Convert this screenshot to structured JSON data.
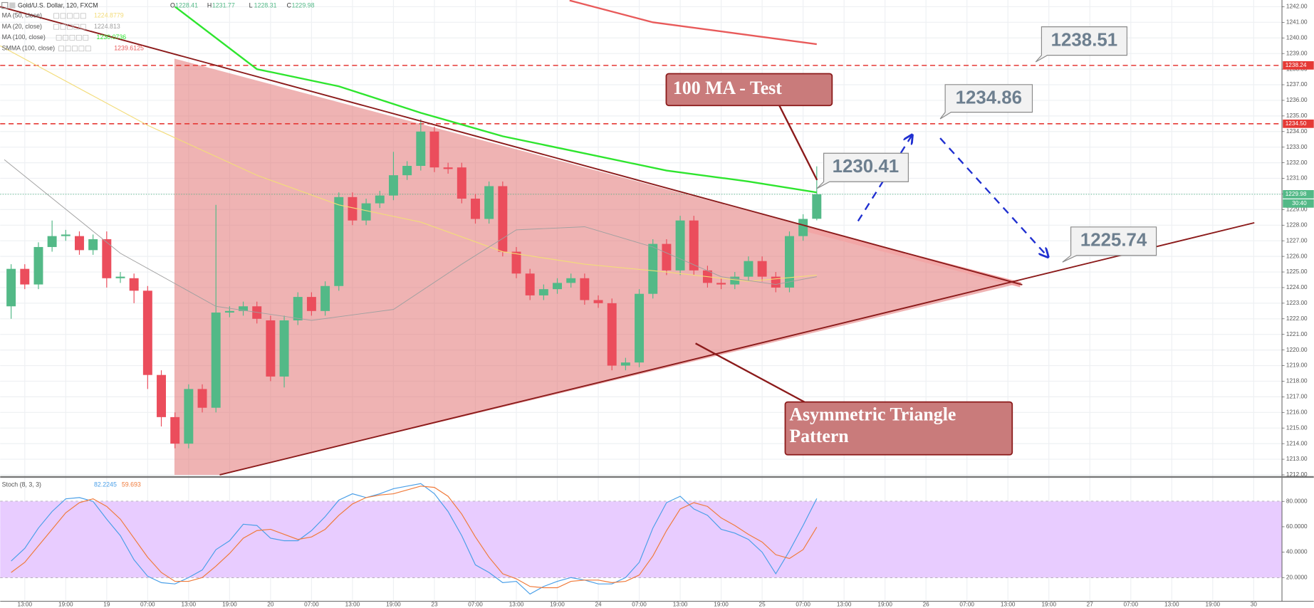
{
  "chart_data": [
    {
      "type": "candlestick",
      "title": "Gold/U.S. Dollar, 120, FXCM",
      "header": [
        {
          "label": "O",
          "value": 1228.41
        },
        {
          "label": "H",
          "value": 1231.77
        },
        {
          "label": "L",
          "value": 1228.31
        },
        {
          "label": "C",
          "value": 1229.98
        }
      ],
      "x": [
        0,
        1,
        2,
        3,
        4,
        5,
        6,
        7,
        8,
        9,
        10,
        11,
        12,
        13,
        14,
        15,
        16,
        17,
        18,
        19,
        20,
        21,
        22,
        23,
        24,
        25,
        26,
        27,
        28,
        29,
        30,
        31,
        32,
        33,
        34,
        35,
        36,
        37,
        38,
        39,
        40,
        41,
        42,
        43,
        44,
        45,
        46,
        47,
        48,
        49,
        50,
        51,
        52,
        53,
        54,
        55,
        56,
        57,
        58,
        59
      ],
      "open": [
        1222.8,
        1225.2,
        1224.2,
        1226.6,
        1227.3,
        1227.3,
        1226.4,
        1227.1,
        1224.6,
        1224.6,
        1223.8,
        1218.4,
        1215.7,
        1214.0,
        1217.5,
        1216.3,
        1222.4,
        1222.5,
        1222.8,
        1221.9,
        1218.3,
        1221.9,
        1223.4,
        1222.5,
        1224.1,
        1229.8,
        1228.3,
        1229.4,
        1229.9,
        1231.2,
        1231.8,
        1234.0,
        1231.7,
        1231.7,
        1229.7,
        1228.4,
        1230.5,
        1226.3,
        1224.9,
        1223.5,
        1223.9,
        1224.3,
        1224.6,
        1223.2,
        1223.0,
        1219.0,
        1219.2,
        1223.6,
        1226.8,
        1225.1,
        1228.3,
        1225.1,
        1224.3,
        1224.2,
        1224.7,
        1225.7,
        1224.7,
        1224.0,
        1227.3,
        1228.41
      ],
      "high": [
        1225.5,
        1225.5,
        1226.9,
        1228.3,
        1227.7,
        1227.6,
        1227.4,
        1227.6,
        1225.0,
        1224.9,
        1224.1,
        1218.7,
        1216.0,
        1217.8,
        1217.8,
        1229.3,
        1222.8,
        1223.1,
        1223.1,
        1222.2,
        1222.2,
        1223.7,
        1223.7,
        1224.4,
        1230.1,
        1230.1,
        1229.7,
        1230.2,
        1232.7,
        1232.1,
        1234.8,
        1234.3,
        1232.0,
        1232.0,
        1230.0,
        1230.8,
        1230.8,
        1226.6,
        1225.2,
        1224.2,
        1224.6,
        1224.9,
        1224.9,
        1223.5,
        1223.3,
        1219.5,
        1223.9,
        1227.1,
        1227.1,
        1228.6,
        1228.6,
        1225.4,
        1224.6,
        1225.0,
        1226.0,
        1226.0,
        1225.0,
        1227.6,
        1228.7,
        1231.77
      ],
      "low": [
        1222.0,
        1223.9,
        1223.9,
        1226.3,
        1227.0,
        1226.1,
        1226.1,
        1224.0,
        1224.3,
        1223.0,
        1217.5,
        1215.1,
        1213.7,
        1213.7,
        1216.0,
        1216.0,
        1222.1,
        1222.2,
        1221.7,
        1218.0,
        1217.6,
        1221.6,
        1222.2,
        1222.2,
        1223.8,
        1228.0,
        1228.0,
        1229.1,
        1229.6,
        1230.9,
        1231.5,
        1231.4,
        1231.3,
        1229.4,
        1228.1,
        1228.1,
        1226.0,
        1224.6,
        1223.2,
        1223.2,
        1223.6,
        1224.0,
        1222.9,
        1222.7,
        1218.7,
        1218.7,
        1218.9,
        1223.3,
        1224.8,
        1224.8,
        1224.8,
        1224.0,
        1223.9,
        1223.9,
        1224.4,
        1224.4,
        1223.7,
        1223.7,
        1227.0,
        1228.31
      ],
      "close": [
        1225.2,
        1224.2,
        1226.6,
        1227.3,
        1227.4,
        1226.4,
        1227.1,
        1224.6,
        1224.7,
        1223.8,
        1218.4,
        1215.7,
        1214.0,
        1217.5,
        1216.3,
        1222.4,
        1222.5,
        1222.8,
        1222.0,
        1218.3,
        1221.9,
        1223.4,
        1222.5,
        1224.1,
        1229.8,
        1228.3,
        1229.4,
        1229.9,
        1231.2,
        1231.8,
        1234.0,
        1231.7,
        1231.6,
        1229.7,
        1228.4,
        1230.5,
        1226.3,
        1224.9,
        1223.5,
        1223.9,
        1224.3,
        1224.6,
        1223.2,
        1223.0,
        1219.0,
        1219.2,
        1223.6,
        1226.8,
        1225.1,
        1228.3,
        1225.1,
        1224.3,
        1224.2,
        1224.7,
        1225.7,
        1224.7,
        1224.0,
        1227.3,
        1228.4,
        1229.98
      ],
      "up_color": "#53b987",
      "down_color": "#eb4d5c",
      "series": [
        {
          "name": "MA (50, close)",
          "last": 1224.8779,
          "color": "#f3dc7a",
          "x": [
            -0.8,
            10,
            18,
            24,
            30,
            36,
            42,
            48,
            54,
            59
          ],
          "values": [
            1239.5,
            1234.4,
            1231.2,
            1229.3,
            1228.2,
            1226.3,
            1225.5,
            1225.0,
            1224.4,
            1224.8
          ]
        },
        {
          "name": "MA (20, close)",
          "last": 1224.813,
          "color": "#a0a0a0",
          "x": [
            -0.5,
            8,
            15,
            22,
            28,
            33,
            37,
            42,
            47,
            52,
            56,
            59
          ],
          "values": [
            1232.2,
            1226.2,
            1222.8,
            1221.9,
            1222.6,
            1225.5,
            1227.7,
            1227.9,
            1226.6,
            1224.7,
            1224.2,
            1224.7
          ]
        },
        {
          "name": "MA (100, close)",
          "last": 1230.0736,
          "color": "#2ee52e",
          "x": [
            12,
            18,
            24,
            30,
            36,
            42,
            48,
            54,
            59
          ],
          "values": [
            1242.0,
            1238.0,
            1236.9,
            1235.2,
            1233.7,
            1232.6,
            1231.5,
            1230.8,
            1230.1
          ]
        },
        {
          "name": "SMMA (100, close)",
          "last": 1239.6125,
          "color": "#e85a5a",
          "x": [
            40.9,
            47,
            53,
            59
          ],
          "values": [
            1242.4,
            1241.0,
            1240.3,
            1239.6
          ]
        }
      ],
      "levels": [
        1238.24,
        {
          "value": 1234.5,
          "label": "1234.50"
        }
      ],
      "level_color": "#e53935",
      "last_price": 1229.98,
      "countdown": "30:40",
      "annotations": [
        "100 MA - Test",
        "Asymmetric Triangle Pattern",
        "1238.51",
        "1234.86",
        "1230.41",
        "1225.74"
      ],
      "xlim": [
        -0.8,
        93.07
      ],
      "ylim": [
        1212,
        1242.43
      ],
      "yticks": [
        {
          "value": 1212,
          "label": "1212.00"
        },
        {
          "value": 1213,
          "label": "1213.00"
        },
        {
          "value": 1214,
          "label": "1214.00"
        },
        {
          "value": 1215,
          "label": "1215.00"
        },
        {
          "value": 1216,
          "label": "1216.00"
        },
        {
          "value": 1217,
          "label": "1217.00"
        },
        {
          "value": 1218,
          "label": "1218.00"
        },
        {
          "value": 1219,
          "label": "1219.00"
        },
        {
          "value": 1220,
          "label": "1220.00"
        },
        {
          "value": 1221,
          "label": "1221.00"
        },
        {
          "value": 1222,
          "label": "1222.00"
        },
        {
          "value": 1223,
          "label": "1223.00"
        },
        {
          "value": 1224,
          "label": "1224.00"
        },
        {
          "value": 1225,
          "label": "1225.00"
        },
        {
          "value": 1226,
          "label": "1226.00"
        },
        {
          "value": 1227,
          "label": "1227.00"
        },
        {
          "value": 1228,
          "label": "1228.00"
        },
        {
          "value": 1229,
          "label": "1229.00"
        },
        {
          "value": 1230,
          "label": "1230.00"
        },
        {
          "value": 1231,
          "label": "1231.00"
        },
        {
          "value": 1232,
          "label": "1232.00"
        },
        {
          "value": 1233,
          "label": "1233.00"
        },
        {
          "value": 1234,
          "label": "1234.00"
        },
        {
          "value": 1235,
          "label": "1235.00"
        },
        {
          "value": 1236,
          "label": "1236.00"
        },
        {
          "value": 1237,
          "label": "1237.00"
        },
        {
          "value": 1238,
          "label": "1238.00"
        },
        {
          "value": 1239,
          "label": "1239.00"
        },
        {
          "value": 1240,
          "label": "1240.00"
        },
        {
          "value": 1241,
          "label": "1241.00"
        },
        {
          "value": 1242,
          "label": "1242.00"
        }
      ],
      "grid": true
    },
    {
      "type": "line",
      "title": "Stoch (8, 3, 3)",
      "series": [
        {
          "last": 82.2245,
          "color": "#4a9fe8",
          "values": [
            33,
            43,
            59,
            72,
            82,
            83,
            80,
            66,
            53,
            34,
            21,
            16,
            15,
            20,
            26,
            42,
            49,
            62,
            61,
            51,
            49,
            49,
            57,
            68,
            81,
            86,
            83,
            86,
            90,
            92,
            94,
            86,
            72,
            53,
            30,
            24,
            16,
            17,
            7,
            13,
            17,
            20,
            18,
            15,
            15,
            20,
            32,
            59,
            79,
            84,
            74,
            69,
            58,
            55,
            50,
            40,
            23,
            41,
            61,
            82.2245
          ]
        },
        {
          "last": 59.693,
          "color": "#f07a3a",
          "values": [
            24,
            32,
            45,
            58,
            71,
            79,
            82,
            76,
            66,
            51,
            36,
            24,
            17,
            17,
            20,
            29,
            39,
            51,
            57,
            58,
            54,
            50,
            52,
            58,
            69,
            78,
            83,
            85,
            86,
            89,
            92,
            91,
            84,
            70,
            52,
            36,
            23,
            19,
            13,
            12,
            12,
            17,
            18,
            18,
            16,
            17,
            22,
            37,
            57,
            74,
            79,
            76,
            67,
            61,
            54,
            48,
            38,
            35,
            42,
            59.693
          ]
        }
      ],
      "band_color": "#e8ccff",
      "ylim": [
        1.3,
        97.6
      ],
      "yticks": [
        {
          "value": 20,
          "label": "20.0000"
        },
        {
          "value": 40,
          "label": "40.0000"
        },
        {
          "value": 60,
          "label": "60.0000"
        },
        {
          "value": 80,
          "label": "80.0000"
        }
      ],
      "xticks": [
        {
          "value": 1,
          "label": "13:00"
        },
        {
          "value": 4,
          "label": "19:00"
        },
        {
          "value": 7,
          "label": "19"
        },
        {
          "value": 10,
          "label": "07:00"
        },
        {
          "value": 13,
          "label": "13:00"
        },
        {
          "value": 16,
          "label": "19:00"
        },
        {
          "value": 19,
          "label": "20"
        },
        {
          "value": 22,
          "label": "07:00"
        },
        {
          "value": 25,
          "label": "13:00"
        },
        {
          "value": 28,
          "label": "19:00"
        },
        {
          "value": 31,
          "label": "23"
        },
        {
          "value": 34,
          "label": "07:00"
        },
        {
          "value": 37,
          "label": "13:00"
        },
        {
          "value": 40,
          "label": "19:00"
        },
        {
          "value": 43,
          "label": "24"
        },
        {
          "value": 46,
          "label": "07:00"
        },
        {
          "value": 49,
          "label": "13:00"
        },
        {
          "value": 52,
          "label": "19:00"
        },
        {
          "value": 55,
          "label": "25"
        },
        {
          "value": 58,
          "label": "07:00"
        },
        {
          "value": 61,
          "label": "13:00"
        },
        {
          "value": 64,
          "label": "19:00"
        },
        {
          "value": 67,
          "label": "26"
        },
        {
          "value": 70,
          "label": "07:00"
        },
        {
          "value": 73,
          "label": "13:00"
        },
        {
          "value": 76,
          "label": "19:00"
        },
        {
          "value": 79,
          "label": "27"
        },
        {
          "value": 82,
          "label": "07:00"
        },
        {
          "value": 85,
          "label": "13:00"
        },
        {
          "value": 88,
          "label": "19:00"
        },
        {
          "value": 91,
          "label": "30"
        }
      ]
    }
  ]
}
